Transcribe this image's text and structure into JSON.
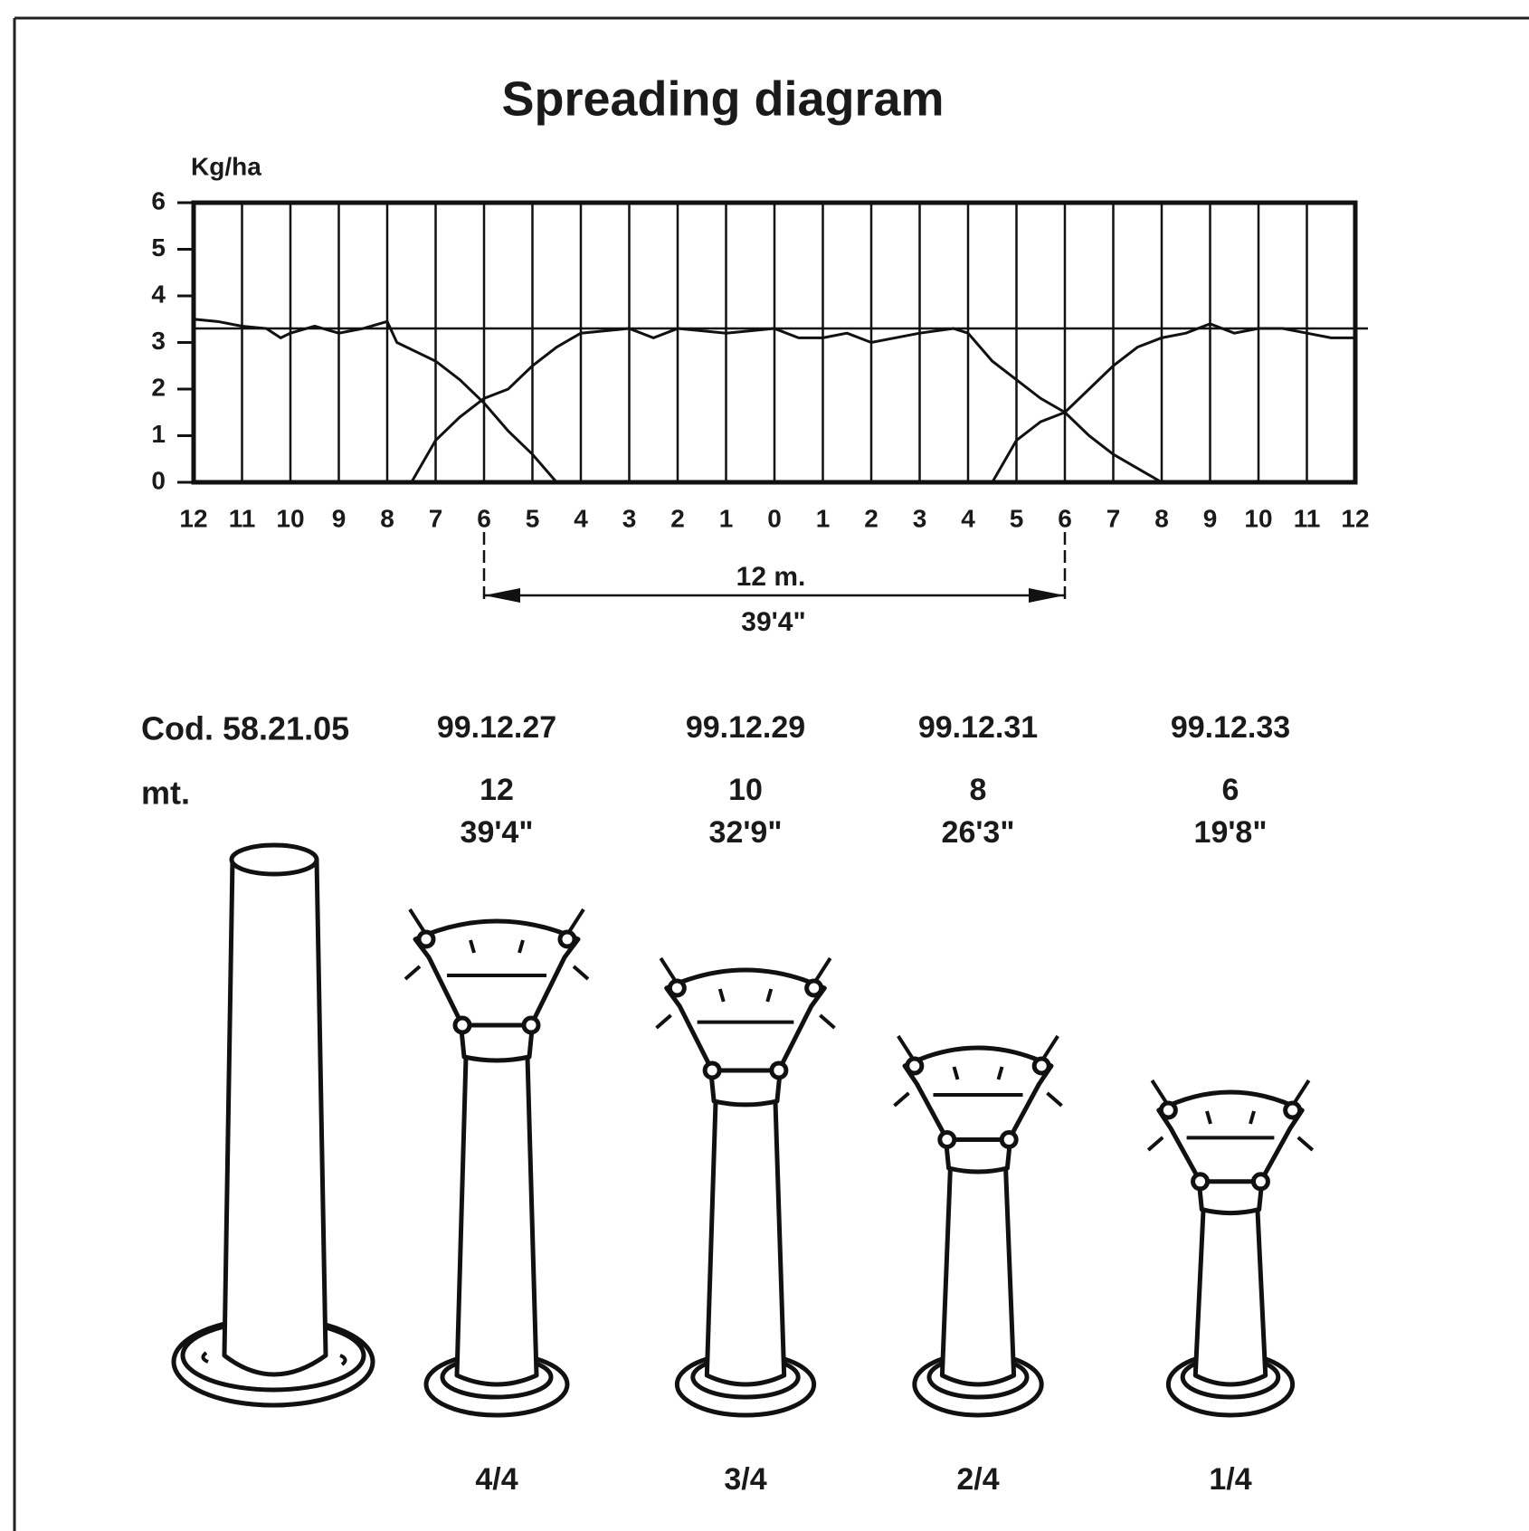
{
  "chart_data": {
    "type": "line",
    "title": "Spreading diagram",
    "y_label": "Kg/ha",
    "xlim": [
      -12,
      12
    ],
    "ylim": [
      0,
      6
    ],
    "xticks": [
      {
        "value": -12,
        "label": "12"
      },
      {
        "value": -11,
        "label": "11"
      },
      {
        "value": -10,
        "label": "10"
      },
      {
        "value": -9,
        "label": "9"
      },
      {
        "value": -8,
        "label": "8"
      },
      {
        "value": -7,
        "label": "7"
      },
      {
        "value": -6,
        "label": "6"
      },
      {
        "value": -5,
        "label": "5"
      },
      {
        "value": -4,
        "label": "4"
      },
      {
        "value": -3,
        "label": "3"
      },
      {
        "value": -2,
        "label": "2"
      },
      {
        "value": -1,
        "label": "1"
      },
      0,
      1,
      2,
      3,
      4,
      5,
      6,
      7,
      8,
      9,
      10,
      11,
      12
    ],
    "yticks": [
      0,
      1,
      2,
      3,
      4,
      5,
      6
    ],
    "grid": "x",
    "reference_line": 3.3,
    "series": [
      {
        "color": "#111111",
        "x": [
          -12,
          -11.5,
          -11,
          -10.5,
          -10.2,
          -10,
          -9.5,
          -9,
          -8.5,
          -8,
          -7.8,
          -7,
          -6.5,
          -6,
          -5.5,
          -5,
          -4.5
        ],
        "values": [
          3.5,
          3.45,
          3.35,
          3.3,
          3.1,
          3.2,
          3.35,
          3.2,
          3.3,
          3.45,
          3.0,
          2.6,
          2.2,
          1.7,
          1.1,
          0.6,
          0
        ]
      },
      {
        "color": "#111111",
        "x": [
          -7.5,
          -7,
          -6.5,
          -6,
          -5.5,
          -5,
          -4.5,
          -4,
          -3,
          -2.5,
          -2,
          -1,
          0,
          0.5,
          1,
          1.5,
          2,
          3,
          3.7,
          4,
          4.5,
          5,
          5.5,
          6,
          6.5,
          7,
          7.5,
          8
        ],
        "values": [
          0,
          0.9,
          1.4,
          1.8,
          2.0,
          2.5,
          2.9,
          3.2,
          3.3,
          3.1,
          3.3,
          3.2,
          3.3,
          3.1,
          3.1,
          3.2,
          3.0,
          3.2,
          3.3,
          3.2,
          2.6,
          2.2,
          1.8,
          1.5,
          1.0,
          0.6,
          0.3,
          0
        ]
      },
      {
        "color": "#111111",
        "x": [
          4.5,
          5,
          5.5,
          6,
          6.5,
          7,
          7.5,
          8,
          8.5,
          9,
          9.5,
          10,
          10.5,
          11,
          11.5,
          12
        ],
        "values": [
          0,
          0.9,
          1.3,
          1.5,
          2.0,
          2.5,
          2.9,
          3.1,
          3.2,
          3.4,
          3.2,
          3.3,
          3.3,
          3.2,
          3.1,
          3.1
        ]
      }
    ],
    "span": [
      -6,
      6
    ],
    "annotations": [
      "12 m.",
      "39'4\""
    ]
  },
  "products": {
    "code_label": "Cod. 58.21.05",
    "width_label": "mt.",
    "items": [
      {
        "code": "99.12.27",
        "meters": "12",
        "feet": "39'4\"",
        "setting": "4/4"
      },
      {
        "code": "99.12.29",
        "meters": "10",
        "feet": "32'9\"",
        "setting": "3/4"
      },
      {
        "code": "99.12.31",
        "meters": "8",
        "feet": "26'3\"",
        "setting": "2/4"
      },
      {
        "code": "99.12.33",
        "meters": "6",
        "feet": "19'8\"",
        "setting": "1/4"
      }
    ]
  }
}
